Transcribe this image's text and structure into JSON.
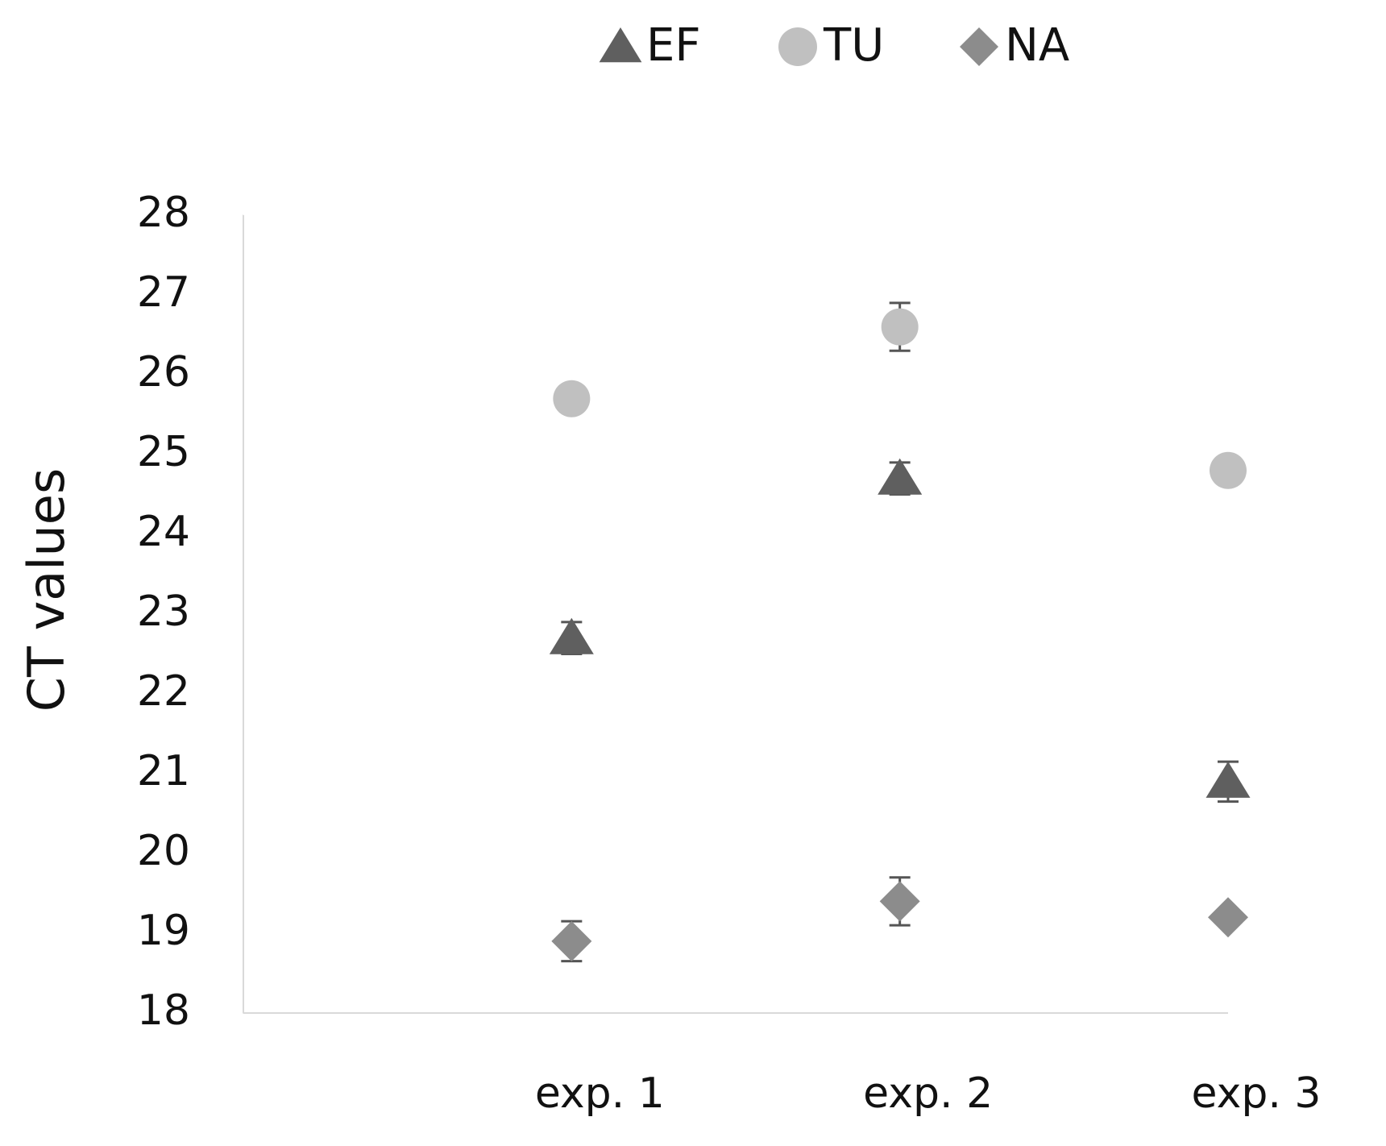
{
  "chart_data": {
    "type": "scatter",
    "y_label": "CT values",
    "categories": [
      "exp. 1",
      "exp. 2",
      "exp. 3"
    ],
    "series": [
      {
        "name": "EF",
        "color": "#5f5f5f",
        "marker": "triangle",
        "values": [
          22.7,
          24.7,
          20.9
        ],
        "errors": [
          0.2,
          0.2,
          0.25
        ]
      },
      {
        "name": "TU",
        "color": "#c0c0c0",
        "marker": "circle",
        "values": [
          25.7,
          26.6,
          24.8
        ],
        "errors": [
          null,
          0.3,
          0.1
        ]
      },
      {
        "name": "NA",
        "color": "#8c8c8c",
        "marker": "diamond",
        "values": [
          18.9,
          19.4,
          19.2
        ],
        "errors": [
          0.25,
          0.3,
          0.1
        ]
      }
    ],
    "ylim": [
      18,
      28
    ],
    "yticks": [
      18,
      19,
      20,
      21,
      22,
      23,
      24,
      25,
      26,
      27,
      28
    ],
    "grid": false
  }
}
